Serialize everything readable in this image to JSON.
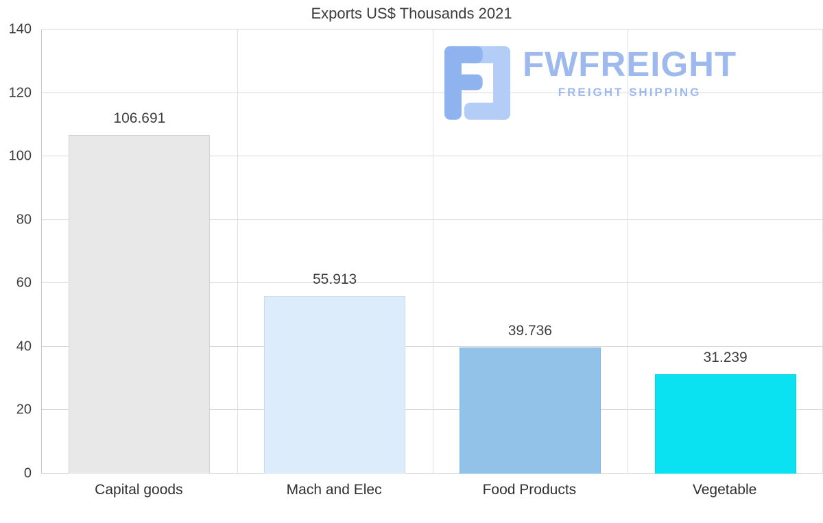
{
  "page": {
    "background": "#ffffff"
  },
  "chart_data": {
    "type": "bar",
    "title": "Exports US$ Thousands 2021",
    "categories": [
      "Capital goods",
      "Mach and Elec",
      "Food Products",
      "Vegetable"
    ],
    "values": [
      106.691,
      55.913,
      39.736,
      31.239
    ],
    "value_labels": [
      "106.691",
      "55.913",
      "39.736",
      "31.239"
    ],
    "bar_colors": [
      "#e8e8e8",
      "#ddecfb",
      "#93c2e9",
      "#0ae2f2"
    ],
    "bar_border_colors": [
      "#d2d2d2",
      "#c9def2",
      "#7fb4e1",
      "#09d0e2"
    ],
    "ylim": [
      0,
      140
    ],
    "yticks": [
      0,
      20,
      40,
      60,
      80,
      100,
      120,
      140
    ],
    "xlabel": "",
    "ylabel": "",
    "grid": true,
    "legend_position": "none"
  },
  "watermark": {
    "brand": "FWFREIGHT",
    "tagline": "FREIGHT SHIPPING",
    "color": "#9db9ed",
    "icon_color_light": "#b4cdf7",
    "icon_color_dark": "#8fb3ef"
  }
}
